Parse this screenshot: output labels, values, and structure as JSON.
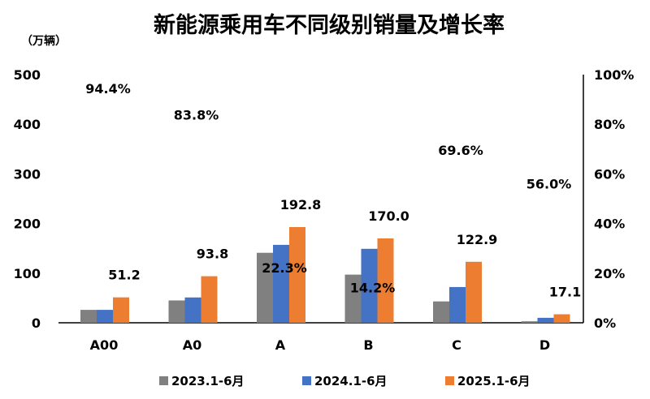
{
  "chart_data": {
    "type": "bar",
    "title": "新能源乘用车不同级别销量及增长率",
    "y_unit_label": "（万辆）",
    "categories": [
      "A00",
      "A0",
      "A",
      "B",
      "C",
      "D"
    ],
    "series": [
      {
        "name": "2023.1-6月",
        "color": "#808080",
        "values": [
          26,
          45,
          141,
          97,
          43,
          3
        ]
      },
      {
        "name": "2024.1-6月",
        "color": "#4472C4",
        "values": [
          26,
          51,
          157,
          149,
          72,
          10
        ]
      },
      {
        "name": "2025.1-6月",
        "color": "#ED7D31",
        "values": [
          51.2,
          93.8,
          192.8,
          170.0,
          122.9,
          17.1
        ]
      }
    ],
    "data_labels": [
      "51.2",
      "93.8",
      "192.8",
      "170.0",
      "122.9",
      "17.1"
    ],
    "growth_rates": [
      "94.4%",
      "83.8%",
      "22.3%",
      "14.2%",
      "69.6%",
      "56.0%"
    ],
    "growth_values": [
      94.4,
      83.8,
      22.3,
      14.2,
      69.6,
      56.0
    ],
    "ylim": [
      0,
      500
    ],
    "yticks": [
      "0",
      "100",
      "200",
      "300",
      "400",
      "500"
    ],
    "y2lim": [
      0,
      100
    ],
    "y2ticks": [
      "0%",
      "20%",
      "40%",
      "60%",
      "80%",
      "100%"
    ],
    "legend_position": "bottom",
    "grid": false
  }
}
